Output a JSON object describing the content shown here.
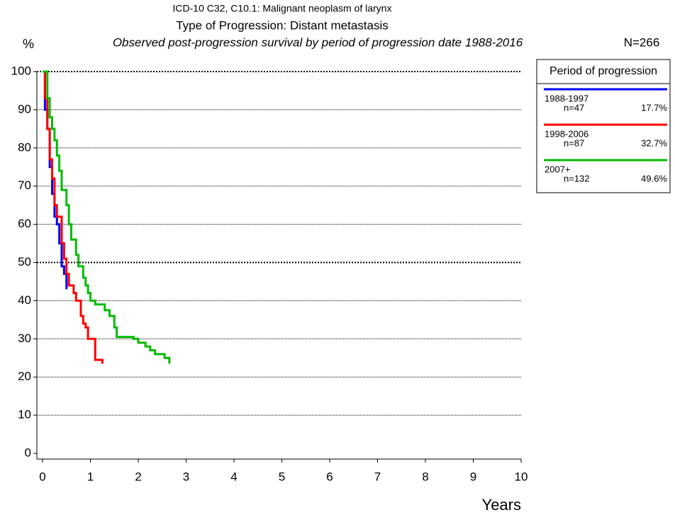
{
  "chart_data": {
    "type": "line",
    "title": "ICD-10 C32, C10.1: Malignant neoplasm of larynx",
    "subtitle": "Type of Progression: Distant metastasis",
    "description": "Observed post-progression survival by period of progression date 1988-2016",
    "total": "N=266",
    "y_label": "%",
    "x_label": "Years",
    "legend_title": "Period of progression",
    "xlim": [
      0,
      10
    ],
    "xticks": [
      0,
      1,
      2,
      3,
      4,
      5,
      6,
      7,
      8,
      9,
      10
    ],
    "ylim": [
      0,
      100
    ],
    "yticks": [
      0,
      10,
      20,
      30,
      40,
      50,
      60,
      70,
      80,
      90,
      100
    ],
    "grid": true,
    "series": [
      {
        "name": "1988-1997",
        "n": "n=47",
        "share": "17.7%",
        "color": "#0000ff",
        "x": [
          0,
          0.05,
          0.05,
          0.1,
          0.1,
          0.15,
          0.15,
          0.2,
          0.2,
          0.25,
          0.25,
          0.3,
          0.3,
          0.35,
          0.35,
          0.4,
          0.4,
          0.45,
          0.45,
          0.5,
          0.5
        ],
        "values": [
          100,
          100,
          90,
          90,
          85,
          85,
          75,
          75,
          68,
          68,
          62,
          62,
          60,
          60,
          55,
          55,
          49,
          49,
          47,
          47,
          43
        ]
      },
      {
        "name": "1998-2006",
        "n": "n=87",
        "share": "32.7%",
        "color": "#ff0000",
        "x": [
          0,
          0.05,
          0.05,
          0.1,
          0.1,
          0.15,
          0.15,
          0.2,
          0.2,
          0.25,
          0.25,
          0.3,
          0.3,
          0.4,
          0.4,
          0.45,
          0.45,
          0.5,
          0.5,
          0.55,
          0.55,
          0.65,
          0.65,
          0.7,
          0.7,
          0.8,
          0.8,
          0.85,
          0.85,
          0.9,
          0.9,
          0.95,
          0.95,
          1.1,
          1.1,
          1.25,
          1.25
        ],
        "values": [
          100,
          100,
          93,
          93,
          85,
          85,
          77,
          77,
          72,
          72,
          65,
          65,
          62,
          62,
          55,
          55,
          51,
          51,
          47,
          47,
          44,
          44,
          42,
          42,
          40,
          40,
          36,
          36,
          34,
          34,
          33,
          33,
          30,
          30,
          24.5,
          24.5,
          23.5
        ]
      },
      {
        "name": "2007+",
        "n": "n=132",
        "share": "49.6%",
        "color": "#00bb00",
        "x": [
          0,
          0.1,
          0.1,
          0.15,
          0.15,
          0.2,
          0.2,
          0.25,
          0.25,
          0.3,
          0.3,
          0.35,
          0.35,
          0.4,
          0.4,
          0.5,
          0.5,
          0.55,
          0.55,
          0.6,
          0.6,
          0.7,
          0.7,
          0.75,
          0.75,
          0.85,
          0.85,
          0.9,
          0.9,
          0.95,
          0.95,
          1.0,
          1.0,
          1.1,
          1.1,
          1.3,
          1.3,
          1.4,
          1.4,
          1.5,
          1.5,
          1.55,
          1.55,
          1.9,
          1.9,
          2.0,
          2.0,
          2.15,
          2.15,
          2.25,
          2.25,
          2.35,
          2.35,
          2.55,
          2.55,
          2.65,
          2.65
        ],
        "values": [
          100,
          100,
          93,
          93,
          88,
          88,
          85,
          85,
          82,
          82,
          78,
          78,
          74,
          74,
          69,
          69,
          65,
          65,
          60,
          60,
          56,
          56,
          52,
          52,
          49,
          49,
          46,
          46,
          44,
          44,
          42,
          42,
          40,
          40,
          39,
          39,
          37.5,
          37.5,
          36,
          36,
          33,
          33,
          30.5,
          30.5,
          30,
          30,
          29,
          29,
          28,
          28,
          27,
          27,
          26,
          26,
          25,
          25,
          23.5
        ]
      }
    ]
  }
}
